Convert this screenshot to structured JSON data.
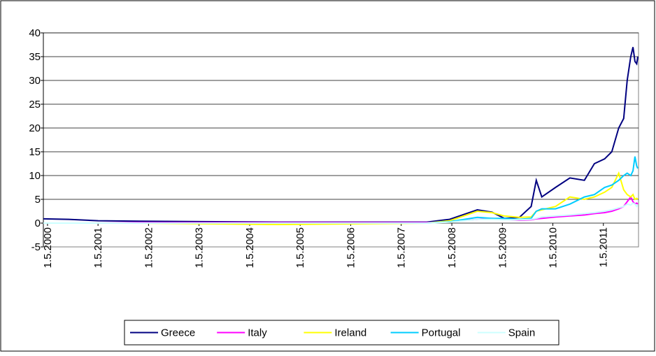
{
  "chart_data": {
    "type": "line",
    "x": [
      "2000-04-01",
      "2000-10-01",
      "2001-05-01",
      "2002-03-01",
      "2004-12-01",
      "2007-11-01",
      "2008-04-15",
      "2008-11-01",
      "2009-02-15",
      "2009-05-15",
      "2009-09-01",
      "2009-11-25",
      "2010-01-01",
      "2010-02-10",
      "2010-05-20",
      "2010-09-01",
      "2010-12-15",
      "2011-02-25",
      "2011-05-10",
      "2011-07-01",
      "2011-08-20",
      "2011-09-25",
      "2011-10-20",
      "2011-11-15",
      "2011-12-01",
      "2011-12-15",
      "2011-12-28",
      "2012-01-05"
    ],
    "series": [
      {
        "name": "Greece",
        "color": "#000080",
        "values": [
          0.9,
          0.8,
          0.5,
          0.4,
          0.2,
          0.2,
          0.8,
          2.8,
          2.3,
          1.0,
          1.2,
          3.5,
          9.0,
          5.5,
          7.5,
          9.5,
          9.0,
          12.5,
          13.5,
          15,
          20,
          22,
          30,
          35,
          37,
          34,
          33.5,
          35
        ]
      },
      {
        "name": "Italy",
        "color": "#ff00ff",
        "values": [
          0,
          0,
          0,
          0.1,
          0.1,
          0.1,
          0.3,
          0.8,
          1.0,
          0.8,
          0.6,
          0.7,
          0.9,
          1.0,
          1.3,
          1.5,
          1.7,
          2.0,
          2.2,
          2.5,
          3.0,
          3.5,
          4.5,
          5.5,
          4.5,
          4.0,
          4.2,
          4.0
        ]
      },
      {
        "name": "Ireland",
        "color": "#ffff00",
        "values": [
          0,
          0,
          0,
          0,
          -0.3,
          0,
          0.5,
          2.5,
          2.2,
          1.5,
          1.2,
          1.3,
          2.5,
          2.8,
          3.5,
          5.5,
          5.0,
          5.5,
          6.5,
          7.5,
          10.5,
          7.0,
          6.0,
          5.5,
          6.0,
          5.0,
          5.2,
          5.0
        ]
      },
      {
        "name": "Portugal",
        "color": "#00ccff",
        "values": [
          0,
          0,
          0,
          0,
          0,
          0,
          0.3,
          1.2,
          1.0,
          1.0,
          0.8,
          1.0,
          2.5,
          3.0,
          3.0,
          4.0,
          5.5,
          6.0,
          7.5,
          8.0,
          9.0,
          10.0,
          10.5,
          10.0,
          11.0,
          14.0,
          12.0,
          11.5
        ]
      },
      {
        "name": "Spain",
        "color": "#ccffff",
        "values": [
          0,
          0,
          0,
          0,
          0,
          0,
          0.2,
          0.8,
          0.8,
          0.7,
          0.7,
          0.8,
          1.0,
          1.3,
          1.5,
          1.7,
          2.0,
          2.2,
          2.5,
          2.8,
          3.2,
          3.5,
          4.0,
          3.8,
          4.2,
          4.0,
          3.5,
          3.8
        ]
      }
    ],
    "xlim": [
      "2000-04-01",
      "2012-01-10"
    ],
    "xticks": [
      {
        "value": "2000-05-01",
        "label": "1.5.2000"
      },
      {
        "value": "2001-05-01",
        "label": "1.5.2001"
      },
      {
        "value": "2002-05-01",
        "label": "1.5.2002"
      },
      {
        "value": "2003-05-01",
        "label": "1.5.2003"
      },
      {
        "value": "2004-05-01",
        "label": "1.5.2004"
      },
      {
        "value": "2005-05-01",
        "label": "1.5.2005"
      },
      {
        "value": "2006-05-01",
        "label": "1.5.2006"
      },
      {
        "value": "2007-05-01",
        "label": "1.5.2007"
      },
      {
        "value": "2008-05-01",
        "label": "1.5.2008"
      },
      {
        "value": "2009-05-01",
        "label": "1.5.2009"
      },
      {
        "value": "2010-05-01",
        "label": "1.5.2010"
      },
      {
        "value": "2011-05-01",
        "label": "1.5.2011"
      }
    ],
    "ylim": [
      -5,
      40
    ],
    "yticks": [
      -5,
      0,
      5,
      10,
      15,
      20,
      25,
      30,
      35,
      40
    ],
    "grid": true,
    "legend": "bottom"
  }
}
